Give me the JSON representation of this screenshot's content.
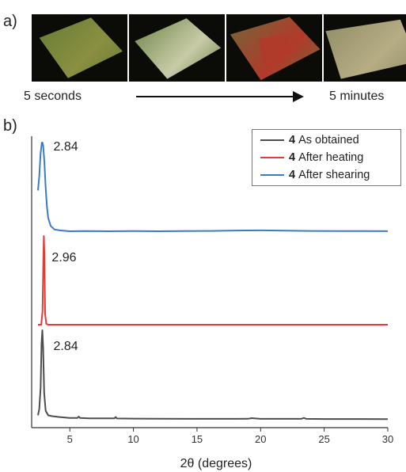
{
  "panels": {
    "a": "a)",
    "b": "b)"
  },
  "captions": {
    "start": "5 seconds",
    "end": "5 minutes"
  },
  "photos": [
    {
      "name": "photo-5-seconds",
      "bg": "#0b0c08",
      "crystal": "#5f7a35",
      "accent": "#8b8f40"
    },
    {
      "name": "photo-intermediate-1",
      "bg": "#0b0c08",
      "crystal": "#607c3a",
      "accent": "#c9cba8"
    },
    {
      "name": "photo-intermediate-2",
      "bg": "#0b0c08",
      "crystal": "#6c6a3a",
      "accent": "#b23a2a"
    },
    {
      "name": "photo-5-minutes",
      "bg": "#0b0c08",
      "crystal": "#8e8a63",
      "accent": "#b6ad84"
    }
  ],
  "chart_data": {
    "type": "line",
    "xlabel": "2θ (degrees)",
    "ylabel": "",
    "xlim": [
      2,
      30
    ],
    "xticks": [
      5,
      10,
      15,
      20,
      25,
      30
    ],
    "yticks": [],
    "grid": false,
    "legend_position": "top-right",
    "peak_labels": [
      {
        "series": "4 After shearing",
        "x": 2.84,
        "text": "2.84"
      },
      {
        "series": "4 After heating",
        "x": 2.96,
        "text": "2.96"
      },
      {
        "series": "4 As obtained",
        "x": 2.84,
        "text": "2.84"
      }
    ],
    "series": [
      {
        "name": "4 After shearing",
        "number": "4",
        "label": "After shearing",
        "color": "#3a7cc4",
        "x": [
          2.5,
          2.6,
          2.7,
          2.8,
          2.84,
          2.9,
          3.0,
          3.1,
          3.2,
          3.3,
          3.5,
          3.8,
          4.2,
          5,
          6,
          8,
          10,
          12,
          14,
          16,
          18,
          20,
          22,
          24,
          26,
          28,
          30
        ],
        "y": [
          0.46,
          0.62,
          0.88,
          1.0,
          1.0,
          0.97,
          0.78,
          0.49,
          0.28,
          0.15,
          0.06,
          0.02,
          0.01,
          0.0,
          0.003,
          0.0,
          0.002,
          0.0,
          0.002,
          0.004,
          0.008,
          0.01,
          0.006,
          0.004,
          0.003,
          0.002,
          0.001
        ]
      },
      {
        "name": "4 After heating",
        "number": "4",
        "label": "After heating",
        "color": "#e33c37",
        "x": [
          2.5,
          2.75,
          2.85,
          2.92,
          2.96,
          3.0,
          3.06,
          3.15,
          3.3,
          4,
          6,
          10,
          15,
          20,
          25,
          30
        ],
        "y": [
          0.0,
          0.0,
          0.15,
          0.75,
          1.0,
          0.78,
          0.12,
          0.01,
          0.0,
          0.0,
          0.0,
          0.0,
          0.0,
          0.0,
          0.0,
          0.0
        ]
      },
      {
        "name": "4 As obtained",
        "number": "4",
        "label": "As obtained",
        "color": "#4d4d4d",
        "x": [
          2.5,
          2.6,
          2.7,
          2.78,
          2.84,
          2.9,
          2.98,
          3.1,
          3.3,
          3.6,
          4.2,
          5,
          5.6,
          5.7,
          5.8,
          6.5,
          8,
          8.5,
          8.6,
          8.7,
          10,
          12,
          15,
          18,
          19,
          19.3,
          20,
          23.2,
          23.4,
          23.6,
          25,
          28,
          30
        ],
        "y": [
          0.05,
          0.12,
          0.35,
          0.85,
          1.0,
          0.8,
          0.3,
          0.1,
          0.05,
          0.04,
          0.03,
          0.02,
          0.02,
          0.035,
          0.02,
          0.015,
          0.015,
          0.015,
          0.03,
          0.014,
          0.012,
          0.011,
          0.01,
          0.01,
          0.011,
          0.018,
          0.01,
          0.01,
          0.02,
          0.01,
          0.008,
          0.008,
          0.007
        ]
      }
    ]
  }
}
